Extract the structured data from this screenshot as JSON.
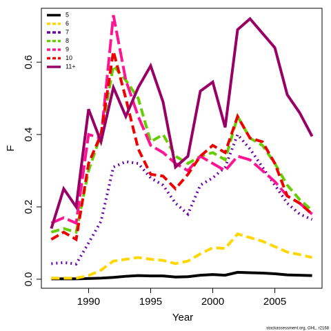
{
  "chart_data": {
    "type": "line",
    "xlabel": "Year",
    "ylabel": "F",
    "footnote": "stockassessment.org, GHL, r2168",
    "x": [
      1987,
      1988,
      1989,
      1990,
      1991,
      1992,
      1993,
      1994,
      1995,
      1996,
      1997,
      1998,
      1999,
      2000,
      2001,
      2002,
      2003,
      2004,
      2005,
      2006,
      2007,
      2008
    ],
    "xlim": [
      1986.2,
      2008.8
    ],
    "xticks": [
      1990,
      1995,
      2000,
      2005
    ],
    "ylim": [
      -0.025,
      0.749
    ],
    "yticks": [
      {
        "value": 0,
        "label": "0.0"
      },
      {
        "value": 0.2,
        "label": "0.2"
      },
      {
        "value": 0.4,
        "label": "0.4"
      },
      {
        "value": 0.6,
        "label": "0.6"
      }
    ],
    "legend": "top-left",
    "series": [
      {
        "name": "5",
        "color": "#000000",
        "line_style": "solid",
        "values": [
          0.001,
          0.001,
          0.001,
          0.002,
          0.003,
          0.005,
          0.008,
          0.01,
          0.009,
          0.009,
          0.006,
          0.007,
          0.011,
          0.013,
          0.011,
          0.019,
          0.018,
          0.017,
          0.015,
          0.012,
          0.011,
          0.01
        ]
      },
      {
        "name": "6",
        "color": "#ffd700",
        "line_style": "dashed",
        "values": [
          0.003,
          0.003,
          0.003,
          0.01,
          0.025,
          0.05,
          0.055,
          0.06,
          0.055,
          0.052,
          0.043,
          0.05,
          0.07,
          0.087,
          0.085,
          0.125,
          0.115,
          0.105,
          0.09,
          0.075,
          0.068,
          0.06
        ]
      },
      {
        "name": "7",
        "color": "#6a00a8",
        "line_style": "dotted",
        "values": [
          0.043,
          0.046,
          0.042,
          0.1,
          0.16,
          0.31,
          0.325,
          0.32,
          0.28,
          0.26,
          0.21,
          0.18,
          0.26,
          0.28,
          0.31,
          0.4,
          0.36,
          0.31,
          0.26,
          0.21,
          0.18,
          0.165
        ]
      },
      {
        "name": "8",
        "color": "#66cd00",
        "line_style": "dashed",
        "values": [
          0.13,
          0.14,
          0.13,
          0.3,
          0.4,
          0.59,
          0.55,
          0.5,
          0.38,
          0.4,
          0.34,
          0.32,
          0.34,
          0.35,
          0.33,
          0.45,
          0.39,
          0.37,
          0.32,
          0.26,
          0.22,
          0.19
        ]
      },
      {
        "name": "9",
        "color": "#ff1493",
        "line_style": "longdash",
        "values": [
          0.155,
          0.17,
          0.155,
          0.4,
          0.39,
          0.73,
          0.55,
          0.45,
          0.37,
          0.35,
          0.32,
          0.3,
          0.34,
          0.32,
          0.3,
          0.34,
          0.33,
          0.3,
          0.27,
          0.23,
          0.21,
          0.18
        ]
      },
      {
        "name": "10",
        "color": "#ee0000",
        "line_style": "dashed",
        "values": [
          0.11,
          0.13,
          0.11,
          0.32,
          0.4,
          0.63,
          0.5,
          0.36,
          0.29,
          0.285,
          0.25,
          0.29,
          0.34,
          0.37,
          0.35,
          0.45,
          0.39,
          0.38,
          0.32,
          0.23,
          0.21,
          0.18
        ]
      },
      {
        "name": "11+",
        "color": "#990066",
        "line_style": "solid",
        "values": [
          0.14,
          0.25,
          0.2,
          0.47,
          0.38,
          0.53,
          0.45,
          0.53,
          0.59,
          0.49,
          0.31,
          0.34,
          0.52,
          0.545,
          0.42,
          0.69,
          0.72,
          0.68,
          0.64,
          0.51,
          0.46,
          0.395
        ]
      }
    ]
  }
}
